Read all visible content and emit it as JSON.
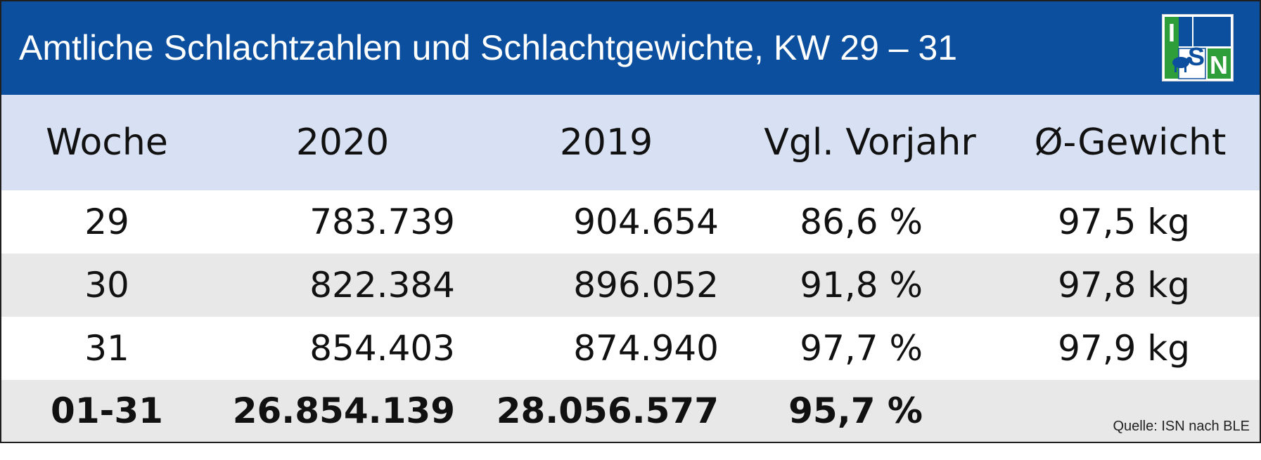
{
  "title": "Amtliche Schlachtzahlen und Schlachtgewichte, KW 29 – 31",
  "logo": {
    "text": "ISN",
    "letters": [
      "I",
      "S",
      "N"
    ]
  },
  "source": "Quelle: ISN nach BLE",
  "colors": {
    "header_bg": "#0b4f9e",
    "table_head_bg": "#d8e1f3",
    "stripe_bg": "#e8e8e8",
    "logo_green": "#2e9e3a",
    "logo_blue": "#0b4f9e"
  },
  "chart_data": {
    "type": "table",
    "title": "Amtliche Schlachtzahlen und Schlachtgewichte, KW 29 – 31",
    "columns": [
      "Woche",
      "2020",
      "2019",
      "Vgl. Vorjahr",
      "Ø-Gewicht"
    ],
    "rows": [
      [
        "29",
        "783.739",
        "904.654",
        "86,6 %",
        "97,5 kg"
      ],
      [
        "30",
        "822.384",
        "896.052",
        "91,8 %",
        "97,8 kg"
      ],
      [
        "31",
        "854.403",
        "874.940",
        "97,7 %",
        "97,9 kg"
      ]
    ],
    "total": [
      "01-31",
      "26.854.139",
      "28.056.577",
      "95,7 %",
      ""
    ]
  }
}
